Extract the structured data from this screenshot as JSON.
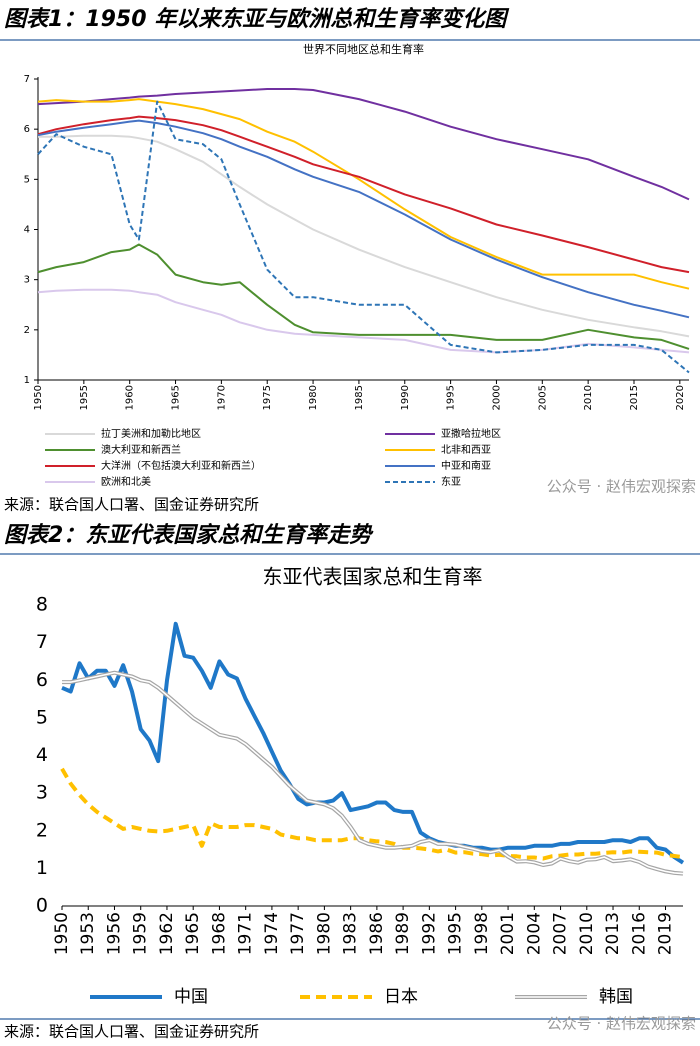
{
  "header1": "图表1：1950 年以来东亚与欧洲总和生育率变化图",
  "source1": "来源：联合国人口署、国金证券研究所",
  "watermark1": "公众号 · 赵伟宏观探索",
  "header2": "图表2：东亚代表国家总和生育率走势",
  "source2": "来源：联合国人口署、国金证券研究所",
  "watermark2": "公众号 · 赵伟宏观探索",
  "chart_data": [
    {
      "type": "line",
      "title": "世界不同地区总和生育率",
      "x": [
        1950,
        1952,
        1955,
        1958,
        1960,
        1961,
        1963,
        1965,
        1968,
        1970,
        1972,
        1975,
        1978,
        1980,
        1985,
        1990,
        1995,
        2000,
        2005,
        2010,
        2015,
        2018,
        2021
      ],
      "xlim": [
        1950,
        2021
      ],
      "xticks": [
        1950,
        1955,
        1960,
        1965,
        1970,
        1975,
        1980,
        1985,
        1990,
        1995,
        2000,
        2005,
        2010,
        2015,
        2020
      ],
      "ylim": [
        1,
        7
      ],
      "yticks": [
        1,
        2,
        3,
        4,
        5,
        6,
        7
      ],
      "series": [
        {
          "name": "拉丁美洲和加勒比地区",
          "color": "#d9d9d9",
          "style": "solid",
          "values": [
            5.85,
            5.85,
            5.87,
            5.87,
            5.85,
            5.82,
            5.75,
            5.6,
            5.35,
            5.1,
            4.85,
            4.5,
            4.2,
            4.0,
            3.6,
            3.25,
            2.95,
            2.65,
            2.4,
            2.2,
            2.05,
            1.97,
            1.87
          ]
        },
        {
          "name": "亚撒哈拉地区",
          "color": "#7030a0",
          "style": "solid",
          "values": [
            6.5,
            6.52,
            6.55,
            6.6,
            6.63,
            6.65,
            6.67,
            6.7,
            6.73,
            6.75,
            6.77,
            6.8,
            6.8,
            6.78,
            6.6,
            6.35,
            6.05,
            5.8,
            5.6,
            5.4,
            5.05,
            4.85,
            4.6
          ]
        },
        {
          "name": "澳大利亚和新西兰",
          "color": "#4e8f2f",
          "style": "solid",
          "values": [
            3.15,
            3.25,
            3.35,
            3.55,
            3.6,
            3.7,
            3.5,
            3.1,
            2.95,
            2.9,
            2.95,
            2.5,
            2.1,
            1.95,
            1.9,
            1.9,
            1.9,
            1.8,
            1.8,
            2.0,
            1.85,
            1.8,
            1.62
          ]
        },
        {
          "name": "北非和西亚",
          "color": "#ffc000",
          "style": "solid",
          "values": [
            6.55,
            6.58,
            6.55,
            6.55,
            6.58,
            6.6,
            6.55,
            6.5,
            6.4,
            6.3,
            6.2,
            5.95,
            5.75,
            5.55,
            5.0,
            4.4,
            3.85,
            3.45,
            3.1,
            3.1,
            3.1,
            2.95,
            2.82
          ]
        },
        {
          "name": "大洋洲（不包括澳大利亚和新西兰）",
          "color": "#d0202a",
          "style": "solid",
          "values": [
            5.9,
            6.0,
            6.1,
            6.18,
            6.22,
            6.25,
            6.22,
            6.18,
            6.08,
            5.98,
            5.85,
            5.65,
            5.45,
            5.3,
            5.05,
            4.7,
            4.42,
            4.1,
            3.88,
            3.65,
            3.4,
            3.25,
            3.15
          ]
        },
        {
          "name": "中亚和南亚",
          "color": "#4472c4",
          "style": "solid",
          "values": [
            5.88,
            5.95,
            6.03,
            6.1,
            6.15,
            6.17,
            6.12,
            6.05,
            5.92,
            5.8,
            5.65,
            5.45,
            5.2,
            5.05,
            4.75,
            4.3,
            3.8,
            3.4,
            3.05,
            2.75,
            2.5,
            2.38,
            2.25
          ]
        },
        {
          "name": "欧洲和北美",
          "color": "#d9c8ec",
          "style": "solid",
          "values": [
            2.75,
            2.78,
            2.8,
            2.8,
            2.78,
            2.75,
            2.7,
            2.55,
            2.4,
            2.3,
            2.15,
            2.0,
            1.92,
            1.9,
            1.85,
            1.8,
            1.6,
            1.55,
            1.6,
            1.72,
            1.65,
            1.6,
            1.55
          ]
        },
        {
          "name": "东亚",
          "color": "#2e75b6",
          "style": "dashed",
          "values": [
            5.5,
            5.9,
            5.65,
            5.5,
            4.1,
            3.8,
            6.55,
            5.8,
            5.7,
            5.4,
            4.5,
            3.2,
            2.65,
            2.65,
            2.5,
            2.5,
            1.7,
            1.55,
            1.6,
            1.7,
            1.7,
            1.6,
            1.15
          ]
        }
      ]
    },
    {
      "type": "line",
      "title": "东亚代表国家总和生育率",
      "x": [
        1950,
        1951,
        1952,
        1953,
        1954,
        1955,
        1956,
        1957,
        1958,
        1959,
        1960,
        1961,
        1962,
        1963,
        1964,
        1965,
        1966,
        1967,
        1968,
        1969,
        1970,
        1971,
        1972,
        1973,
        1974,
        1975,
        1976,
        1977,
        1978,
        1979,
        1980,
        1981,
        1982,
        1983,
        1984,
        1985,
        1986,
        1987,
        1988,
        1989,
        1990,
        1991,
        1992,
        1993,
        1994,
        1995,
        1996,
        1997,
        1998,
        1999,
        2000,
        2001,
        2002,
        2003,
        2004,
        2005,
        2006,
        2007,
        2008,
        2009,
        2010,
        2011,
        2012,
        2013,
        2014,
        2015,
        2016,
        2017,
        2018,
        2019,
        2020,
        2021
      ],
      "xlim": [
        1950,
        2021
      ],
      "xticks": [
        1950,
        1953,
        1956,
        1959,
        1962,
        1965,
        1968,
        1971,
        1974,
        1977,
        1980,
        1983,
        1986,
        1989,
        1992,
        1995,
        1998,
        2001,
        2004,
        2007,
        2010,
        2013,
        2016,
        2019
      ],
      "ylim": [
        0,
        8
      ],
      "yticks": [
        0,
        1,
        2,
        3,
        4,
        5,
        6,
        7,
        8
      ],
      "series": [
        {
          "name": "中国",
          "color": "#1f78c8",
          "style": "solid",
          "values": [
            5.8,
            5.7,
            6.45,
            6.05,
            6.25,
            6.25,
            5.85,
            6.4,
            5.7,
            4.7,
            4.4,
            3.85,
            6.0,
            7.5,
            6.65,
            6.6,
            6.25,
            5.8,
            6.5,
            6.15,
            6.05,
            5.5,
            5.05,
            4.6,
            4.1,
            3.6,
            3.25,
            2.85,
            2.7,
            2.75,
            2.75,
            2.8,
            3.0,
            2.55,
            2.6,
            2.65,
            2.75,
            2.75,
            2.55,
            2.5,
            2.5,
            1.95,
            1.8,
            1.7,
            1.65,
            1.6,
            1.6,
            1.55,
            1.55,
            1.5,
            1.5,
            1.55,
            1.55,
            1.55,
            1.6,
            1.6,
            1.6,
            1.65,
            1.65,
            1.7,
            1.7,
            1.7,
            1.7,
            1.75,
            1.75,
            1.7,
            1.8,
            1.8,
            1.55,
            1.5,
            1.3,
            1.15
          ]
        },
        {
          "name": "日本",
          "color": "#ffc000",
          "style": "dashed",
          "values": [
            3.65,
            3.25,
            2.95,
            2.7,
            2.5,
            2.35,
            2.2,
            2.05,
            2.1,
            2.05,
            2.0,
            1.98,
            2.0,
            2.05,
            2.1,
            2.15,
            1.6,
            2.2,
            2.1,
            2.1,
            2.1,
            2.15,
            2.15,
            2.1,
            2.05,
            1.9,
            1.85,
            1.8,
            1.8,
            1.75,
            1.75,
            1.75,
            1.75,
            1.8,
            1.8,
            1.75,
            1.72,
            1.7,
            1.65,
            1.55,
            1.55,
            1.53,
            1.5,
            1.45,
            1.5,
            1.42,
            1.43,
            1.39,
            1.38,
            1.34,
            1.36,
            1.33,
            1.32,
            1.29,
            1.29,
            1.26,
            1.32,
            1.34,
            1.37,
            1.37,
            1.39,
            1.39,
            1.41,
            1.43,
            1.42,
            1.45,
            1.44,
            1.43,
            1.42,
            1.36,
            1.33,
            1.3
          ]
        },
        {
          "name": "韩国",
          "color": "#a6a6a6",
          "style": "double",
          "values": [
            5.95,
            5.95,
            6.0,
            6.05,
            6.1,
            6.15,
            6.2,
            6.15,
            6.1,
            6.0,
            5.95,
            5.8,
            5.6,
            5.4,
            5.2,
            5.0,
            4.85,
            4.7,
            4.55,
            4.5,
            4.45,
            4.3,
            4.1,
            3.9,
            3.7,
            3.45,
            3.2,
            3.0,
            2.8,
            2.75,
            2.7,
            2.6,
            2.4,
            2.1,
            1.75,
            1.65,
            1.6,
            1.55,
            1.55,
            1.57,
            1.6,
            1.7,
            1.75,
            1.65,
            1.65,
            1.63,
            1.57,
            1.52,
            1.46,
            1.43,
            1.48,
            1.31,
            1.18,
            1.19,
            1.16,
            1.09,
            1.13,
            1.26,
            1.19,
            1.15,
            1.23,
            1.24,
            1.3,
            1.19,
            1.21,
            1.24,
            1.17,
            1.05,
            0.98,
            0.92,
            0.88,
            0.86
          ]
        }
      ]
    }
  ]
}
